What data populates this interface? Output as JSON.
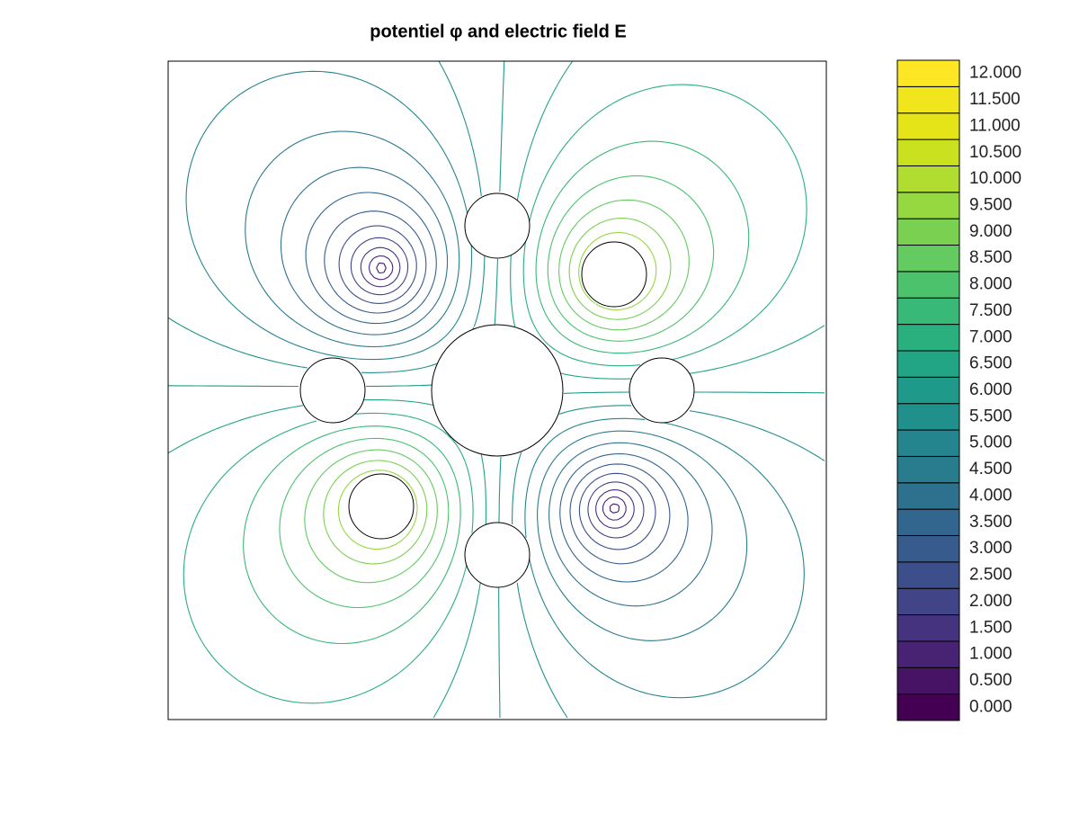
{
  "chart_data": {
    "type": "contour",
    "title": "potentiel φ and electric field E",
    "levels": [
      {
        "value": 0,
        "label": "0.000"
      },
      {
        "value": 0.5,
        "label": "0.500"
      },
      {
        "value": 1,
        "label": "1.000"
      },
      {
        "value": 1.5,
        "label": "1.500"
      },
      {
        "value": 2,
        "label": "2.000"
      },
      {
        "value": 2.5,
        "label": "2.500"
      },
      {
        "value": 3,
        "label": "3.000"
      },
      {
        "value": 3.5,
        "label": "3.500"
      },
      {
        "value": 4,
        "label": "4.000"
      },
      {
        "value": 4.5,
        "label": "4.500"
      },
      {
        "value": 5,
        "label": "5.000"
      },
      {
        "value": 5.5,
        "label": "5.500"
      },
      {
        "value": 6,
        "label": "6.000"
      },
      {
        "value": 6.5,
        "label": "6.500"
      },
      {
        "value": 7,
        "label": "7.000"
      },
      {
        "value": 7.5,
        "label": "7.500"
      },
      {
        "value": 8,
        "label": "8.000"
      },
      {
        "value": 8.5,
        "label": "8.500"
      },
      {
        "value": 9,
        "label": "9.000"
      },
      {
        "value": 9.5,
        "label": "9.500"
      },
      {
        "value": 10,
        "label": "10.000"
      },
      {
        "value": 10.5,
        "label": "10.500"
      },
      {
        "value": 11,
        "label": "11.000"
      },
      {
        "value": 11.5,
        "label": "11.500"
      },
      {
        "value": 12,
        "label": "12.000"
      }
    ],
    "colors": [
      "#440154",
      "#471365",
      "#482374",
      "#46337f",
      "#414487",
      "#3c4f8a",
      "#375b8d",
      "#32668e",
      "#2d718e",
      "#297b8e",
      "#25858e",
      "#21908d",
      "#1f9a8a",
      "#21a585",
      "#2aaf7f",
      "#38b977",
      "#4cc26c",
      "#63cb5f",
      "#7ad151",
      "#95d840",
      "#b0dd2f",
      "#cae11f",
      "#e4e419",
      "#f1e51d",
      "#fde725"
    ]
  }
}
